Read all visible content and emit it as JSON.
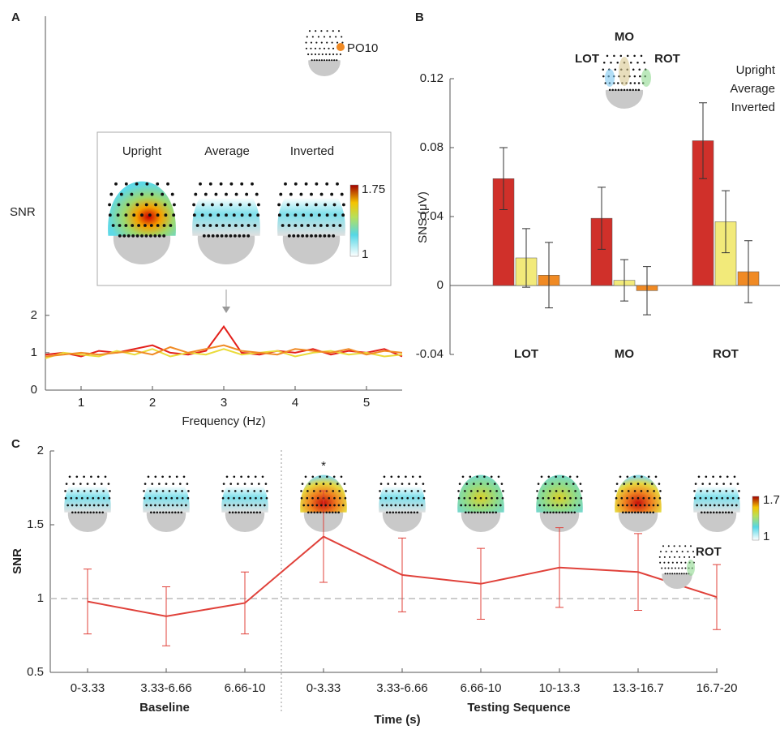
{
  "panels": [
    "A",
    "B",
    "C"
  ],
  "chart_data": [
    {
      "type": "line",
      "xlabel": "Frequency (Hz)",
      "ylabel": "SNR",
      "x": [
        0.5,
        0.75,
        1,
        1.25,
        1.5,
        1.75,
        2,
        2.25,
        2.5,
        2.75,
        3,
        3.25,
        3.5,
        3.75,
        4,
        4.25,
        4.5,
        4.75,
        5,
        5.25,
        5.5
      ],
      "series": [
        {
          "name": "Upright",
          "color": "#e3201b",
          "values": [
            0.95,
            1.0,
            0.9,
            1.05,
            1.0,
            1.1,
            1.2,
            1.0,
            0.95,
            1.05,
            1.7,
            1.0,
            0.95,
            1.05,
            1.0,
            1.1,
            0.95,
            1.05,
            1.0,
            1.1,
            0.9
          ]
        },
        {
          "name": "Average",
          "color": "#eadb3a",
          "values": [
            0.85,
            1.0,
            0.95,
            0.9,
            1.05,
            0.95,
            1.1,
            0.9,
            1.0,
            0.95,
            1.1,
            0.95,
            1.0,
            1.05,
            0.9,
            1.0,
            1.05,
            0.95,
            1.0,
            0.9,
            0.95
          ]
        },
        {
          "name": "Inverted",
          "color": "#f08a24",
          "values": [
            0.9,
            0.95,
            1.0,
            0.95,
            1.0,
            1.05,
            0.95,
            1.15,
            1.0,
            1.1,
            1.2,
            1.05,
            1.0,
            0.95,
            1.1,
            1.05,
            1.0,
            1.1,
            0.95,
            1.05,
            1.0
          ]
        }
      ],
      "xlim": [
        0.5,
        5.5
      ],
      "xticks": [
        1,
        2,
        3,
        4,
        5
      ],
      "ylim": [
        0,
        10
      ],
      "yticks": [
        0,
        1,
        2
      ],
      "electrode": "PO10",
      "colorbar_ticks": [
        1,
        1.75
      ]
    },
    {
      "type": "bar",
      "ylabel": "SNS (μV)",
      "categories": [
        "LOT",
        "MO",
        "ROT"
      ],
      "category_colors": [
        "#29a8df",
        "#8b5a2b",
        "#2e8b2e"
      ],
      "series": [
        {
          "name": "Upright",
          "color": "#d0302a",
          "values": [
            0.062,
            0.039,
            0.084
          ],
          "errors": [
            0.018,
            0.018,
            0.022
          ]
        },
        {
          "name": "Average",
          "color": "#f2ea7a",
          "values": [
            0.016,
            0.003,
            0.037
          ],
          "errors": [
            0.017,
            0.012,
            0.018
          ]
        },
        {
          "name": "Inverted",
          "color": "#f08a24",
          "values": [
            0.006,
            -0.003,
            0.008
          ],
          "errors": [
            0.019,
            0.014,
            0.018
          ]
        }
      ],
      "ylim": [
        -0.04,
        0.12
      ],
      "yticks": [
        -0.04,
        0,
        0.04,
        0.08,
        0.12
      ],
      "legend": "top-right"
    },
    {
      "type": "line",
      "ylabel": "SNR",
      "xlabel": "Time (s)",
      "color": "#e0413a",
      "categories": [
        "0-3.33",
        "3.33-6.66",
        "6.66-10",
        "0-3.33",
        "3.33-6.66",
        "6.66-10",
        "10-13.3",
        "13.3-16.7",
        "16.7-20"
      ],
      "values": [
        0.98,
        0.88,
        0.97,
        1.42,
        1.16,
        1.1,
        1.21,
        1.18,
        1.01
      ],
      "errors": [
        0.22,
        0.2,
        0.21,
        0.31,
        0.25,
        0.24,
        0.27,
        0.26,
        0.22
      ],
      "ylim": [
        0.5,
        2
      ],
      "yticks": [
        0.5,
        1,
        1.5,
        2
      ],
      "reference_line": 1,
      "groups": [
        "Baseline",
        "Testing Sequence"
      ],
      "annotation": "*",
      "region": "ROT",
      "colorbar_ticks": [
        1,
        1.7
      ]
    }
  ]
}
